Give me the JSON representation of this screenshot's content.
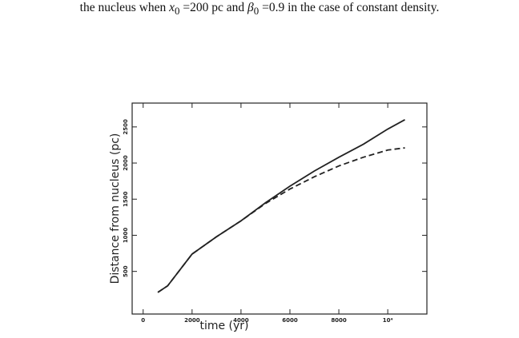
{
  "caption": [
    "the nucleus when ",
    "x",
    "0",
    " =200 pc and ",
    "β",
    "0",
    " =0.9 in the case of constant density."
  ],
  "chart_data": {
    "type": "line",
    "xlabel": "time (yr)",
    "ylabel": "Distance from nucleus  (pc)",
    "x": [
      600,
      1000,
      2000,
      3000,
      4000,
      5000,
      6000,
      7000,
      8000,
      9000,
      10000,
      10700
    ],
    "series": [
      {
        "color": "#222222",
        "dash": false,
        "values": [
          210,
          300,
          740,
          980,
          1200,
          1450,
          1680,
          1890,
          2080,
          2260,
          2470,
          2600
        ]
      },
      {
        "color": "#222222",
        "dash": true,
        "values": [
          210,
          300,
          740,
          980,
          1200,
          1440,
          1640,
          1810,
          1960,
          2080,
          2180,
          2210
        ]
      }
    ],
    "xlim": [
      -450,
      11600
    ],
    "ylim": [
      -90,
      2830
    ],
    "xticks": [
      0,
      2000,
      4000,
      6000,
      8000,
      {
        "value": 10000,
        "label": "10⁴"
      }
    ],
    "yticks": [
      500,
      1000,
      1500,
      2000,
      2500
    ]
  }
}
